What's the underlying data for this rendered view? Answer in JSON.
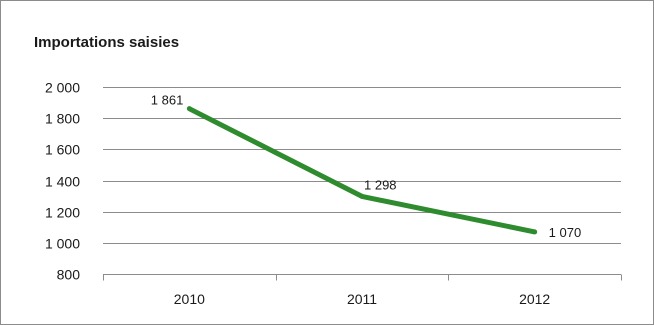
{
  "chart_data": {
    "type": "line",
    "title": "Importations saisies",
    "xlabel": "",
    "ylabel": "",
    "categories": [
      "2010",
      "2011",
      "2012"
    ],
    "series": [
      {
        "values": [
          1861,
          1298,
          1070
        ],
        "data_labels": [
          "1 861",
          "1 298",
          "1 070"
        ],
        "color": "#2e8b2e"
      }
    ],
    "ylim": [
      800,
      2000
    ],
    "yticks": [
      800,
      1000,
      1200,
      1400,
      1600,
      1800,
      2000
    ],
    "ytick_labels": [
      "800",
      "1 000",
      "1 200",
      "1 400",
      "1 600",
      "1 800",
      "2 000"
    ],
    "grid": true,
    "legend": "none"
  }
}
